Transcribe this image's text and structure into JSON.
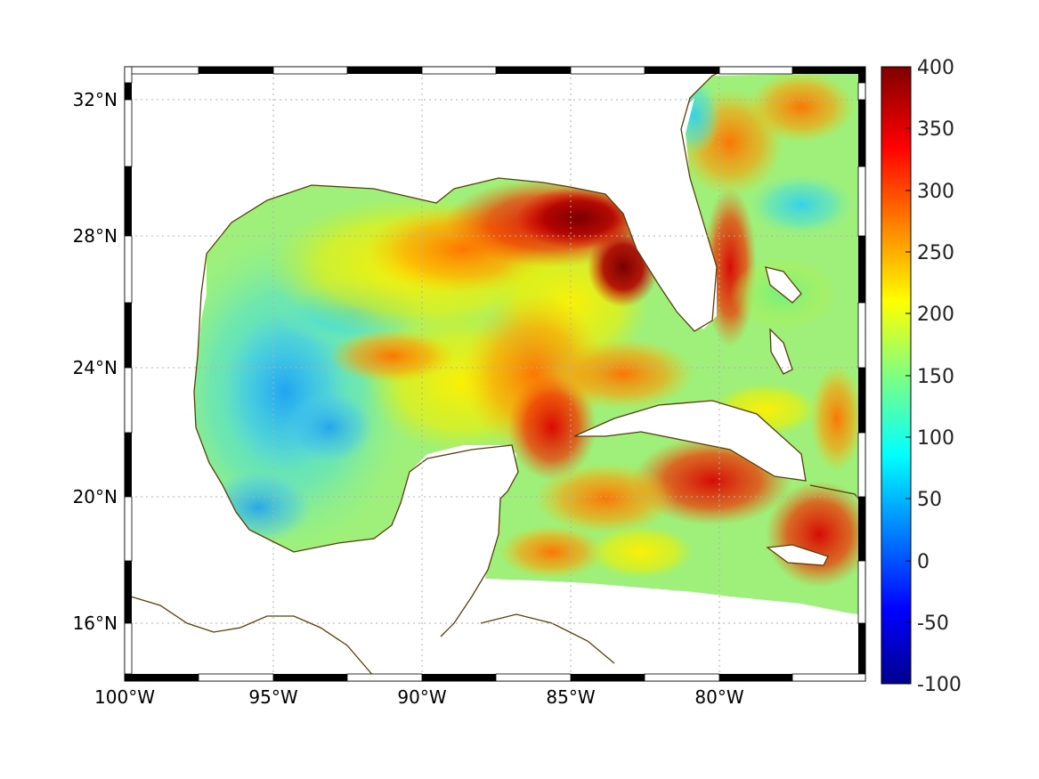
{
  "map": {
    "longitude_ticks": [
      "100°W",
      "95°W",
      "90°W",
      "85°W",
      "80°W"
    ],
    "latitude_ticks": [
      "32°N",
      "28°N",
      "24°N",
      "20°N",
      "16°N"
    ],
    "lon_range": [
      -100,
      -75
    ],
    "lat_range": [
      14.2,
      32.9
    ],
    "grid": true,
    "coastline_color": "#5a3d0a",
    "land_color": "#ffffff"
  },
  "colorbar": {
    "ticks": [
      "400",
      "350",
      "300",
      "250",
      "200",
      "150",
      "100",
      "50",
      "0",
      "-50",
      "-100"
    ],
    "range": [
      -100,
      400
    ],
    "colormap": "jet",
    "placement": "right"
  }
}
